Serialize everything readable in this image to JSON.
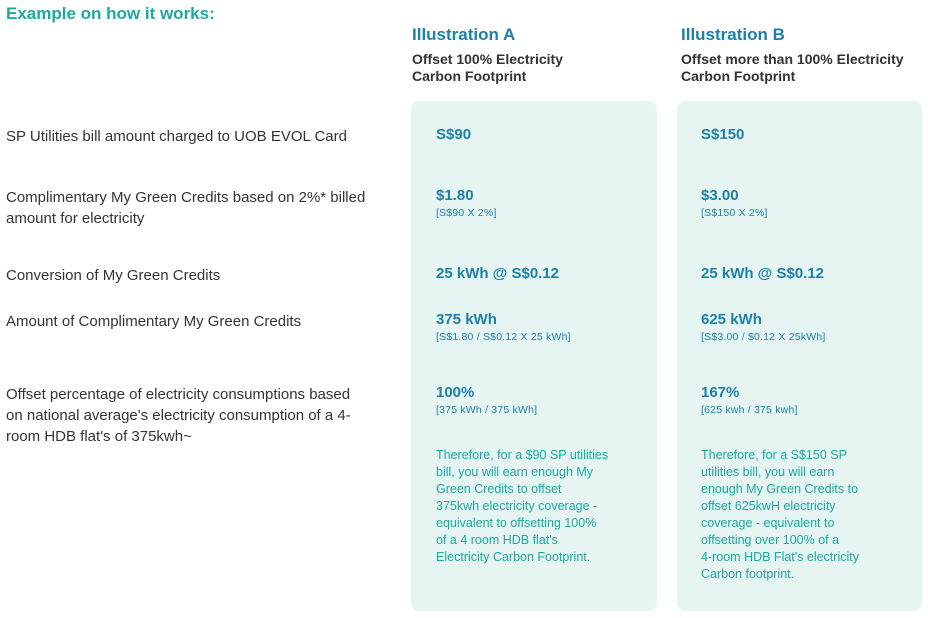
{
  "heading": "Example on how it works:",
  "illustrations": [
    {
      "title": "Illustration A",
      "subtitle_line1": "Offset 100% Electricity",
      "subtitle_line2": "Carbon Footprint",
      "bill": "S$90",
      "credits": "$1.80",
      "credits_calc": "[S$90 X 2%]",
      "conversion": "25 kWh @ S$0.12",
      "amount": "375 kWh",
      "amount_calc": "[S$1.80 / S$0.12 X 25 kWh]",
      "offset": "100%",
      "offset_calc": "[375 kWh / 375 kWh]",
      "note_lines": [
        "Therefore, for a $90 SP utilities",
        "bill, you will earn enough My",
        "Green Credits to offset",
        "375kwh electricity coverage -",
        "equivalent to offsetting 100%",
        "of a 4 room HDB flat's",
        "Electricity Carbon Footprint."
      ]
    },
    {
      "title": "Illustration B",
      "subtitle_line1": "Offset more than 100% Electricity",
      "subtitle_line2": "Carbon Footprint",
      "bill": "S$150",
      "credits": "$3.00",
      "credits_calc": "[S$150 X 2%]",
      "conversion": "25 kWh @ S$0.12",
      "amount": "625 kWh",
      "amount_calc": "[S$3.00 / $0.12 X 25kWh]",
      "offset": "167%",
      "offset_calc": "[625 kwh / 375 kwh]",
      "note_lines": [
        "Therefore, for a S$150 SP",
        "utilities bill, you will earn",
        "enough My Green Credits to",
        "offset 625kwH electricity",
        "coverage - equivalent to",
        "offsetting over 100% of a",
        "4-room HDB Flat's electricity",
        "Carbon footprint."
      ]
    }
  ],
  "rows": {
    "bill": "SP Utilities bill amount charged to UOB EVOL Card",
    "credits_line1": "Complimentary My Green Credits based on 2%* billed",
    "credits_line2": "amount for electricity",
    "conversion": "Conversion of My Green Credits",
    "amount": "Amount of Complimentary My Green Credits",
    "offset_line1": "Offset percentage of electricity consumptions based",
    "offset_line2": "on national average's electricity consumption of a 4-",
    "offset_line3": "room HDB flat's of 375kwh~"
  },
  "colors": {
    "heading": "#1aa9a0",
    "accent_blue": "#1c80aa",
    "card_bg": "#e6f4f2"
  }
}
